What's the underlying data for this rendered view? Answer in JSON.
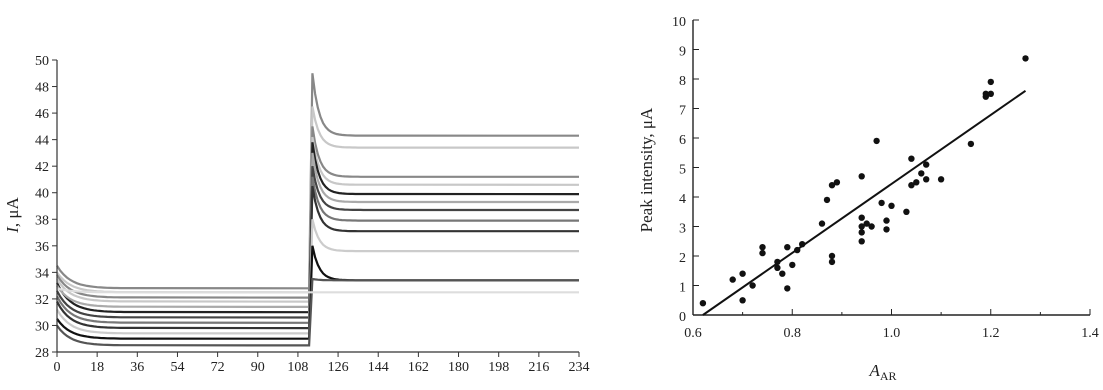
{
  "chart_data": [
    {
      "type": "line",
      "title": "",
      "ylabel_italic": "I",
      "ylabel_rest": ", μA",
      "xlabel": "",
      "xlim": [
        0,
        234
      ],
      "ylim": [
        28,
        50
      ],
      "x_ticks": [
        "0",
        "18",
        "36",
        "54",
        "72",
        "90",
        "108",
        "126",
        "144",
        "162",
        "180",
        "198",
        "216",
        "234"
      ],
      "y_ticks": [
        "28",
        "30",
        "32",
        "34",
        "36",
        "38",
        "40",
        "42",
        "44",
        "46",
        "48",
        "50"
      ],
      "step_time": 113,
      "series": [
        {
          "color": "#888888",
          "values": {
            "start": 34.5,
            "plateau1": 32.8,
            "peak": 49.0,
            "plateau2": 44.3
          }
        },
        {
          "color": "#c8c8c8",
          "values": {
            "start": 34.0,
            "plateau1": 32.5,
            "peak": 46.5,
            "plateau2": 43.4
          }
        },
        {
          "color": "#888888",
          "values": {
            "start": 33.8,
            "plateau1": 32.1,
            "peak": 45.0,
            "plateau2": 41.2
          }
        },
        {
          "color": "#c8c8c8",
          "values": {
            "start": 33.5,
            "plateau1": 31.8,
            "peak": 44.2,
            "plateau2": 40.6
          }
        },
        {
          "color": "#222222",
          "values": {
            "start": 33.2,
            "plateau1": 31.0,
            "peak": 43.8,
            "plateau2": 39.9
          }
        },
        {
          "color": "#aaaaaa",
          "values": {
            "start": 33.0,
            "plateau1": 31.4,
            "peak": 43.0,
            "plateau2": 39.3
          }
        },
        {
          "color": "#444444",
          "values": {
            "start": 32.6,
            "plateau1": 30.6,
            "peak": 42.0,
            "plateau2": 38.7
          }
        },
        {
          "color": "#777777",
          "values": {
            "start": 32.2,
            "plateau1": 30.2,
            "peak": 41.2,
            "plateau2": 37.9
          }
        },
        {
          "color": "#333333",
          "values": {
            "start": 31.8,
            "plateau1": 29.8,
            "peak": 40.5,
            "plateau2": 37.1
          }
        },
        {
          "color": "#cccccc",
          "values": {
            "start": 31.2,
            "plateau1": 29.4,
            "peak": 38.0,
            "plateau2": 35.6
          }
        },
        {
          "color": "#111111",
          "values": {
            "start": 30.5,
            "plateau1": 29.0,
            "peak": 36.0,
            "plateau2": 33.4
          }
        },
        {
          "color": "#555555",
          "values": {
            "start": 30.0,
            "plateau1": 28.5,
            "peak": 33.5,
            "plateau2": 33.4
          }
        },
        {
          "color": "#dddddd",
          "values": {
            "start": 32.8,
            "plateau1": 32.5,
            "peak": 32.5,
            "plateau2": 32.5
          }
        }
      ]
    },
    {
      "type": "scatter",
      "title": "",
      "ylabel": "Peak intensity, μA",
      "xlabel_italic": "A",
      "xlabel_sub": "AR",
      "xlim": [
        0.6,
        1.4
      ],
      "ylim": [
        0,
        10
      ],
      "x_ticks": [
        "0.6",
        "0.8",
        "1.0",
        "1.2",
        "1.4"
      ],
      "y_ticks": [
        "0",
        "1",
        "2",
        "3",
        "4",
        "5",
        "6",
        "7",
        "8",
        "9",
        "10"
      ],
      "points": [
        [
          0.62,
          0.4
        ],
        [
          0.68,
          1.2
        ],
        [
          0.7,
          0.5
        ],
        [
          0.7,
          1.4
        ],
        [
          0.72,
          1.0
        ],
        [
          0.74,
          2.1
        ],
        [
          0.74,
          2.3
        ],
        [
          0.77,
          1.6
        ],
        [
          0.77,
          1.8
        ],
        [
          0.78,
          1.4
        ],
        [
          0.79,
          0.9
        ],
        [
          0.79,
          2.3
        ],
        [
          0.8,
          1.7
        ],
        [
          0.81,
          2.2
        ],
        [
          0.82,
          2.4
        ],
        [
          0.86,
          3.1
        ],
        [
          0.87,
          3.9
        ],
        [
          0.88,
          4.4
        ],
        [
          0.88,
          2.0
        ],
        [
          0.88,
          1.8
        ],
        [
          0.89,
          4.5
        ],
        [
          0.94,
          4.7
        ],
        [
          0.94,
          3.3
        ],
        [
          0.94,
          3.0
        ],
        [
          0.94,
          2.8
        ],
        [
          0.94,
          2.5
        ],
        [
          0.95,
          3.1
        ],
        [
          0.96,
          3.0
        ],
        [
          0.97,
          5.9
        ],
        [
          0.98,
          3.8
        ],
        [
          0.99,
          3.2
        ],
        [
          0.99,
          2.9
        ],
        [
          1.0,
          3.7
        ],
        [
          1.03,
          3.5
        ],
        [
          1.04,
          4.4
        ],
        [
          1.04,
          5.3
        ],
        [
          1.05,
          4.5
        ],
        [
          1.06,
          4.8
        ],
        [
          1.07,
          5.1
        ],
        [
          1.07,
          4.6
        ],
        [
          1.1,
          4.6
        ],
        [
          1.16,
          5.8
        ],
        [
          1.19,
          7.4
        ],
        [
          1.19,
          7.5
        ],
        [
          1.2,
          7.9
        ],
        [
          1.2,
          7.5
        ],
        [
          1.27,
          8.7
        ]
      ],
      "fit_line": {
        "x": [
          0.62,
          1.27
        ],
        "y": [
          0.0,
          7.6
        ]
      }
    }
  ]
}
